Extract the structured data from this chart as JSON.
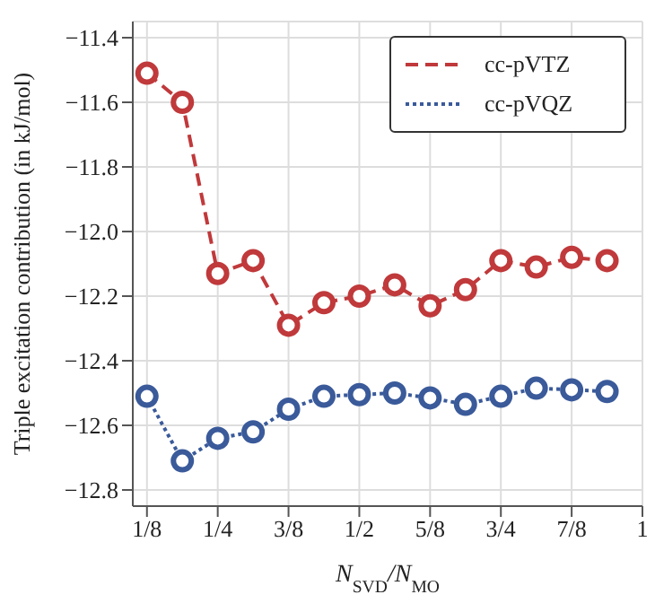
{
  "chart_data": {
    "type": "line",
    "xlabel": "N$_{SVD}$/N$_{MO}$",
    "ylabel": "Triple excitation contribution (in kJ/mol)",
    "x": [
      0.125,
      0.1875,
      0.25,
      0.3125,
      0.375,
      0.4375,
      0.5,
      0.5625,
      0.625,
      0.6875,
      0.75,
      0.8125,
      0.875,
      0.9375
    ],
    "series": [
      {
        "name": "cc-pVTZ",
        "color": "#c0393b",
        "line_style": "dashed",
        "values": [
          -11.51,
          -11.6,
          -12.13,
          -12.09,
          -12.29,
          -12.22,
          -12.2,
          -12.165,
          -12.23,
          -12.18,
          -12.09,
          -12.11,
          -12.08,
          -12.09
        ]
      },
      {
        "name": "cc-pVQZ",
        "color": "#3a5a9a",
        "line_style": "dotted",
        "values": [
          -12.51,
          -12.71,
          -12.64,
          -12.62,
          -12.55,
          -12.51,
          -12.505,
          -12.5,
          -12.515,
          -12.535,
          -12.51,
          -12.485,
          -12.49,
          -12.495
        ]
      }
    ],
    "xlim": [
      0.1,
      1
    ],
    "xticks": [
      {
        "value": 0.125,
        "label": "1/8"
      },
      {
        "value": 0.25,
        "label": "1/4"
      },
      {
        "value": 0.375,
        "label": "3/8"
      },
      {
        "value": 0.5,
        "label": "1/2"
      },
      {
        "value": 0.625,
        "label": "5/8"
      },
      {
        "value": 0.75,
        "label": "3/4"
      },
      {
        "value": 0.875,
        "label": "7/8"
      },
      1
    ],
    "ylim": [
      -12.85,
      -11.35
    ],
    "yticks": [
      -12.8,
      -12.6,
      -12.4,
      -12.2,
      {
        "value": -12.0,
        "label": "−12.0"
      },
      -11.8,
      -11.6,
      -11.4
    ],
    "grid": true,
    "legend": "top right",
    "marker": "circle"
  }
}
